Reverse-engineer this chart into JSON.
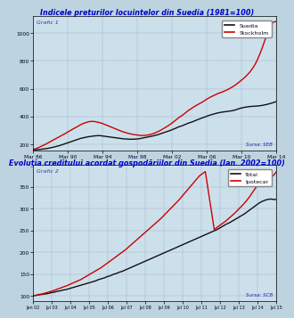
{
  "title1": "Indicele prețurilor locuințelor din Suedia (1981=100)",
  "title2": "Evoluția creditului acordat gospodăriilor din Suedia (Ian. 2002=100)",
  "graf1_label": "Grafic 1",
  "graf2_label": "Grafic 2",
  "source1": "Sursa: SEB",
  "source2": "Sursa: SCB",
  "line1_legend": [
    "Suedia",
    "Stockholm"
  ],
  "line2_legend": [
    "Total",
    "Ipotecar"
  ],
  "bg_color": "#bdd4e0",
  "plot_bg": "#cce0ec",
  "title_color": "#0000cc",
  "graf_label_color": "#3333aa",
  "source_color": "#2222aa",
  "line_black": "#111111",
  "line_red": "#cc0000",
  "grid_color": "#9999bb",
  "tick_color": "#000022",
  "xticks1": [
    "Mar 86",
    "Mar 90",
    "Mar 94",
    "Mar 98",
    "Mar 02",
    "Mar 06",
    "Mar 10",
    "Mar 14"
  ],
  "yticks1": [
    200,
    400,
    600,
    800,
    1000
  ],
  "ylim1": [
    155,
    1120
  ],
  "xticks2": [
    "Jan 02",
    "Jul 03",
    "Jul 04",
    "Jul 05",
    "Jul 06",
    "Jul 07",
    "Jul 08",
    "Jul 09",
    "Jul 10",
    "Jul 11",
    "Jul 12",
    "Jul 13",
    "Jul 14",
    "Jul 15"
  ],
  "yticks2": [
    100,
    150,
    200,
    250,
    300,
    350
  ],
  "ylim2": [
    88,
    400
  ],
  "suedia_y": [
    160,
    161,
    162,
    163,
    165,
    167,
    169,
    171,
    174,
    177,
    180,
    184,
    188,
    192,
    197,
    202,
    207,
    212,
    217,
    222,
    227,
    232,
    237,
    242,
    246,
    249,
    252,
    255,
    257,
    259,
    261,
    262,
    263,
    262,
    260,
    258,
    256,
    254,
    252,
    250,
    248,
    246,
    244,
    242,
    240,
    239,
    238,
    237,
    237,
    237,
    238,
    239,
    241,
    244,
    247,
    250,
    253,
    256,
    259,
    262,
    266,
    270,
    275,
    280,
    285,
    290,
    295,
    300,
    306,
    312,
    318,
    325,
    330,
    335,
    341,
    347,
    353,
    358,
    363,
    369,
    375,
    381,
    387,
    392,
    397,
    403,
    408,
    413,
    417,
    421,
    425,
    428,
    431,
    433,
    435,
    437,
    439,
    441,
    444,
    448,
    453,
    458,
    462,
    465,
    468,
    470,
    472,
    473,
    474,
    475,
    476,
    478,
    480,
    483,
    486,
    490,
    494,
    498,
    503,
    508
  ],
  "stockholm_y": [
    163,
    168,
    174,
    180,
    187,
    194,
    201,
    209,
    217,
    225,
    233,
    241,
    249,
    257,
    265,
    273,
    281,
    290,
    298,
    307,
    315,
    323,
    331,
    340,
    347,
    353,
    358,
    362,
    365,
    365,
    364,
    361,
    358,
    354,
    349,
    343,
    337,
    331,
    325,
    319,
    313,
    307,
    301,
    295,
    290,
    285,
    281,
    277,
    274,
    271,
    269,
    267,
    265,
    264,
    264,
    265,
    267,
    270,
    274,
    279,
    285,
    292,
    299,
    307,
    316,
    325,
    334,
    344,
    355,
    366,
    378,
    390,
    400,
    410,
    421,
    433,
    444,
    454,
    464,
    473,
    482,
    490,
    498,
    507,
    516,
    526,
    534,
    542,
    549,
    556,
    563,
    569,
    574,
    580,
    586,
    593,
    601,
    609,
    618,
    628,
    639,
    651,
    663,
    675,
    689,
    704,
    720,
    740,
    762,
    788,
    820,
    855,
    893,
    935,
    980,
    1025,
    1060,
    1075,
    1080,
    1085
  ],
  "total_y": [
    100,
    101,
    102,
    103,
    104,
    105,
    107,
    108,
    110,
    111,
    113,
    114,
    116,
    118,
    120,
    122,
    124,
    126,
    128,
    130,
    132,
    134,
    137,
    139,
    141,
    144,
    146,
    149,
    151,
    154,
    156,
    159,
    162,
    165,
    168,
    171,
    174,
    177,
    180,
    183,
    186,
    189,
    192,
    195,
    198,
    201,
    204,
    207,
    210,
    213,
    216,
    219,
    222,
    225,
    228,
    231,
    234,
    237,
    240,
    243,
    246,
    249,
    252,
    256,
    260,
    264,
    267,
    271,
    275,
    279,
    283,
    287,
    292,
    297,
    302,
    307,
    312,
    316,
    319,
    321,
    322,
    321,
    321
  ],
  "ipotecar_y": [
    100,
    101,
    103,
    104,
    106,
    108,
    110,
    112,
    115,
    117,
    120,
    122,
    125,
    128,
    131,
    134,
    137,
    141,
    145,
    149,
    153,
    157,
    161,
    165,
    170,
    175,
    180,
    185,
    190,
    195,
    200,
    205,
    211,
    217,
    223,
    229,
    235,
    241,
    247,
    253,
    259,
    265,
    271,
    277,
    284,
    291,
    298,
    305,
    312,
    319,
    327,
    335,
    343,
    351,
    359,
    367,
    375,
    380,
    385,
    390,
    248,
    252,
    257,
    262,
    267,
    272,
    278,
    284,
    290,
    297,
    304,
    311,
    319,
    328,
    338,
    348,
    358,
    365,
    368,
    370,
    373,
    376,
    385
  ]
}
